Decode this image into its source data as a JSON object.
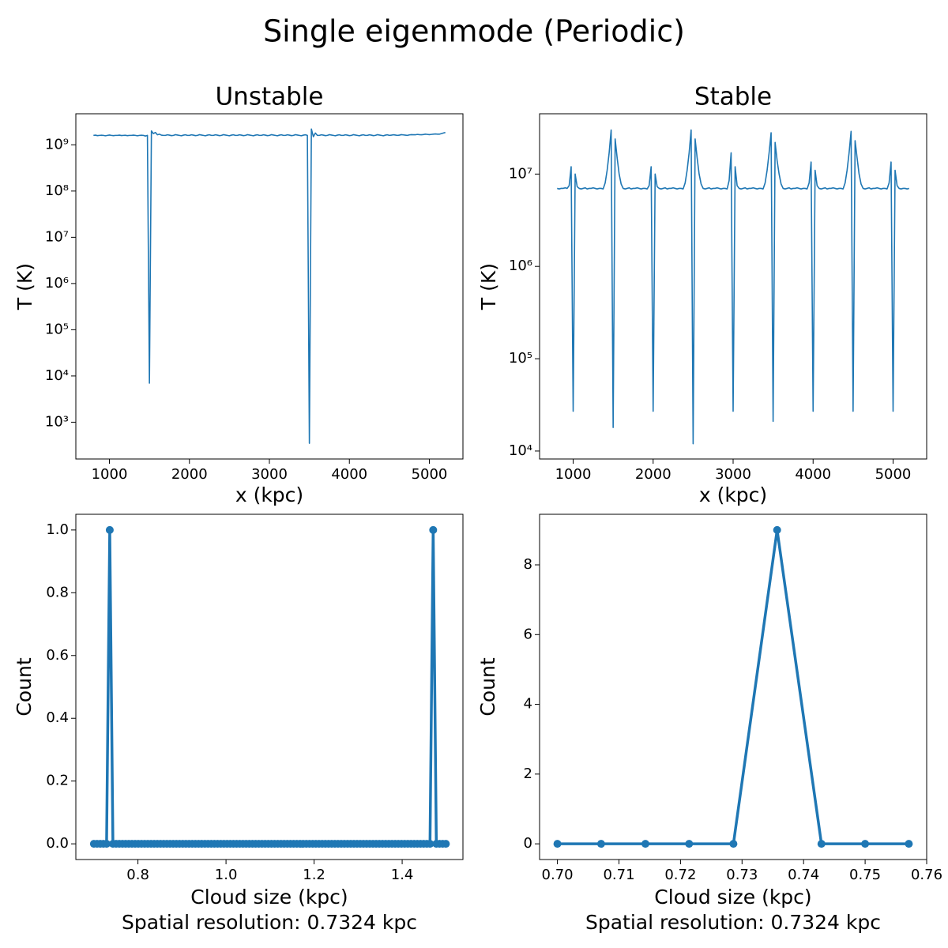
{
  "title": "Single eigenmode (Periodic)",
  "chart_data": [
    {
      "type": "line",
      "title": "Unstable",
      "xlabel": "x (kpc)",
      "ylabel": "T (K)",
      "yscale": "log",
      "color": "#1f77b4",
      "marker": false,
      "xlim": [
        580,
        5420
      ],
      "xticks": [
        1000,
        2000,
        3000,
        4000,
        5000
      ],
      "ylim": [
        160,
        4700000000.0
      ],
      "yticks": [
        {
          "value": 1000,
          "label": "10³"
        },
        {
          "value": 10000,
          "label": "10⁴"
        },
        {
          "value": 100000,
          "label": "10⁵"
        },
        {
          "value": 1000000,
          "label": "10⁶"
        },
        {
          "value": 10000000,
          "label": "10⁷"
        },
        {
          "value": 100000000,
          "label": "10⁸"
        },
        {
          "value": 1000000000,
          "label": "10⁹"
        }
      ],
      "x": [
        800,
        825,
        850,
        875,
        900,
        925,
        950,
        975,
        1000,
        1025,
        1050,
        1075,
        1100,
        1125,
        1150,
        1175,
        1200,
        1225,
        1250,
        1275,
        1300,
        1325,
        1350,
        1375,
        1400,
        1425,
        1450,
        1475,
        1500,
        1525,
        1550,
        1575,
        1600,
        1625,
        1650,
        1675,
        1700,
        1725,
        1750,
        1775,
        1800,
        1825,
        1850,
        1875,
        1900,
        1925,
        1950,
        1975,
        2000,
        2025,
        2050,
        2075,
        2100,
        2125,
        2150,
        2175,
        2200,
        2225,
        2250,
        2275,
        2300,
        2325,
        2350,
        2375,
        2400,
        2425,
        2450,
        2475,
        2500,
        2525,
        2550,
        2575,
        2600,
        2625,
        2650,
        2675,
        2700,
        2725,
        2750,
        2775,
        2800,
        2825,
        2850,
        2875,
        2900,
        2925,
        2950,
        2975,
        3000,
        3025,
        3050,
        3075,
        3100,
        3125,
        3150,
        3175,
        3200,
        3225,
        3250,
        3275,
        3300,
        3325,
        3350,
        3375,
        3400,
        3425,
        3450,
        3475,
        3500,
        3525,
        3550,
        3575,
        3600,
        3625,
        3650,
        3675,
        3700,
        3725,
        3750,
        3775,
        3800,
        3825,
        3850,
        3875,
        3900,
        3925,
        3950,
        3975,
        4000,
        4025,
        4050,
        4075,
        4100,
        4125,
        4150,
        4175,
        4200,
        4225,
        4250,
        4275,
        4300,
        4325,
        4350,
        4375,
        4400,
        4425,
        4450,
        4475,
        4500,
        4525,
        4550,
        4575,
        4600,
        4625,
        4650,
        4675,
        4700,
        4725,
        4750,
        4775,
        4800,
        4825,
        4850,
        4875,
        4900,
        4925,
        4950,
        4975,
        5000,
        5025,
        5050,
        5075,
        5100,
        5125,
        5150,
        5175,
        5200
      ],
      "values": [
        1600000000.0,
        1620000000.0,
        1580000000.0,
        1600000000.0,
        1610000000.0,
        1600000000.0,
        1570000000.0,
        1600000000.0,
        1630000000.0,
        1600000000.0,
        1580000000.0,
        1600000000.0,
        1600000000.0,
        1620000000.0,
        1590000000.0,
        1600000000.0,
        1610000000.0,
        1580000000.0,
        1600000000.0,
        1600000000.0,
        1620000000.0,
        1600000000.0,
        1570000000.0,
        1600000000.0,
        1610000000.0,
        1600000000.0,
        1550000000.0,
        1600000000.0,
        7000,
        2000000000.0,
        1750000000.0,
        1850000000.0,
        1650000000.0,
        1700000000.0,
        1620000000.0,
        1600000000.0,
        1600000000.0,
        1650000000.0,
        1620000000.0,
        1580000000.0,
        1600000000.0,
        1660000000.0,
        1630000000.0,
        1600000000.0,
        1570000000.0,
        1620000000.0,
        1650000000.0,
        1600000000.0,
        1600000000.0,
        1650000000.0,
        1620000000.0,
        1580000000.0,
        1600000000.0,
        1660000000.0,
        1630000000.0,
        1600000000.0,
        1570000000.0,
        1620000000.0,
        1650000000.0,
        1600000000.0,
        1600000000.0,
        1650000000.0,
        1620000000.0,
        1580000000.0,
        1600000000.0,
        1660000000.0,
        1630000000.0,
        1600000000.0,
        1570000000.0,
        1620000000.0,
        1650000000.0,
        1600000000.0,
        1600000000.0,
        1650000000.0,
        1620000000.0,
        1580000000.0,
        1600000000.0,
        1660000000.0,
        1630000000.0,
        1600000000.0,
        1570000000.0,
        1620000000.0,
        1650000000.0,
        1600000000.0,
        1600000000.0,
        1650000000.0,
        1620000000.0,
        1580000000.0,
        1600000000.0,
        1660000000.0,
        1630000000.0,
        1600000000.0,
        1570000000.0,
        1620000000.0,
        1650000000.0,
        1600000000.0,
        1600000000.0,
        1650000000.0,
        1620000000.0,
        1580000000.0,
        1600000000.0,
        1660000000.0,
        1630000000.0,
        1600000000.0,
        1570000000.0,
        1620000000.0,
        1650000000.0,
        1600000000.0,
        350,
        2200000000.0,
        1500000000.0,
        1800000000.0,
        1600000000.0,
        1600000000.0,
        1650000000.0,
        1620000000.0,
        1580000000.0,
        1600000000.0,
        1660000000.0,
        1630000000.0,
        1600000000.0,
        1570000000.0,
        1620000000.0,
        1650000000.0,
        1600000000.0,
        1600000000.0,
        1650000000.0,
        1620000000.0,
        1580000000.0,
        1600000000.0,
        1660000000.0,
        1630000000.0,
        1600000000.0,
        1570000000.0,
        1620000000.0,
        1650000000.0,
        1600000000.0,
        1600000000.0,
        1650000000.0,
        1620000000.0,
        1580000000.0,
        1600000000.0,
        1660000000.0,
        1630000000.0,
        1600000000.0,
        1570000000.0,
        1620000000.0,
        1650000000.0,
        1600000000.0,
        1620000000.0,
        1650000000.0,
        1630000000.0,
        1600000000.0,
        1620000000.0,
        1660000000.0,
        1640000000.0,
        1620000000.0,
        1600000000.0,
        1640000000.0,
        1660000000.0,
        1650000000.0,
        1650000000.0,
        1680000000.0,
        1660000000.0,
        1650000000.0,
        1670000000.0,
        1700000000.0,
        1680000000.0,
        1660000000.0,
        1680000000.0,
        1700000000.0,
        1720000000.0,
        1700000000.0,
        1700000000.0,
        1750000000.0,
        1800000000.0,
        1850000000.0
      ]
    },
    {
      "type": "line",
      "title": "Stable",
      "xlabel": "x (kpc)",
      "ylabel": "T (K)",
      "yscale": "log",
      "color": "#1f77b4",
      "marker": false,
      "xlim": [
        580,
        5420
      ],
      "xticks": [
        1000,
        2000,
        3000,
        4000,
        5000
      ],
      "ylim": [
        8200,
        45000000.0
      ],
      "yticks": [
        {
          "value": 10000,
          "label": "10⁴"
        },
        {
          "value": 100000,
          "label": "10⁵"
        },
        {
          "value": 1000000,
          "label": "10⁶"
        },
        {
          "value": 10000000,
          "label": "10⁷"
        }
      ],
      "x": [
        800,
        825,
        850,
        875,
        900,
        925,
        950,
        975,
        1000,
        1025,
        1050,
        1075,
        1100,
        1125,
        1150,
        1175,
        1200,
        1225,
        1250,
        1275,
        1300,
        1325,
        1350,
        1375,
        1400,
        1425,
        1450,
        1475,
        1500,
        1525,
        1550,
        1575,
        1600,
        1625,
        1650,
        1675,
        1700,
        1725,
        1750,
        1775,
        1800,
        1825,
        1850,
        1875,
        1900,
        1925,
        1950,
        1975,
        2000,
        2025,
        2050,
        2075,
        2100,
        2125,
        2150,
        2175,
        2200,
        2225,
        2250,
        2275,
        2300,
        2325,
        2350,
        2375,
        2400,
        2425,
        2450,
        2475,
        2500,
        2525,
        2550,
        2575,
        2600,
        2625,
        2650,
        2675,
        2700,
        2725,
        2750,
        2775,
        2800,
        2825,
        2850,
        2875,
        2900,
        2925,
        2950,
        2975,
        3000,
        3025,
        3050,
        3075,
        3100,
        3125,
        3150,
        3175,
        3200,
        3225,
        3250,
        3275,
        3300,
        3325,
        3350,
        3375,
        3400,
        3425,
        3450,
        3475,
        3500,
        3525,
        3550,
        3575,
        3600,
        3625,
        3650,
        3675,
        3700,
        3725,
        3750,
        3775,
        3800,
        3825,
        3850,
        3875,
        3900,
        3925,
        3950,
        3975,
        4000,
        4025,
        4050,
        4075,
        4100,
        4125,
        4150,
        4175,
        4200,
        4225,
        4250,
        4275,
        4300,
        4325,
        4350,
        4375,
        4400,
        4425,
        4450,
        4475,
        4500,
        4525,
        4550,
        4575,
        4600,
        4625,
        4650,
        4675,
        4700,
        4725,
        4750,
        4775,
        4800,
        4825,
        4850,
        4875,
        4900,
        4925,
        4950,
        4975,
        5000,
        5025,
        5050,
        5075,
        5100,
        5125,
        5150,
        5175,
        5200
      ],
      "values": [
        7000000.0,
        6900000.0,
        7000000.0,
        7000000.0,
        7100000.0,
        7000000.0,
        7500000.0,
        12000000.0,
        27000.0,
        10000000.0,
        7300000.0,
        7000000.0,
        6900000.0,
        7000000.0,
        7100000.0,
        6900000.0,
        7000000.0,
        7000000.0,
        7100000.0,
        7000000.0,
        6900000.0,
        7000000.0,
        7000000.0,
        6900000.0,
        8000000.0,
        11000000.0,
        17000000.0,
        30000000.0,
        18000.0,
        24000000.0,
        15000000.0,
        10000000.0,
        7800000.0,
        7000000.0,
        6900000.0,
        7000000.0,
        7100000.0,
        6900000.0,
        7000000.0,
        7000000.0,
        7100000.0,
        7000000.0,
        6900000.0,
        7000000.0,
        7000000.0,
        6900000.0,
        7500000.0,
        12000000.0,
        27000.0,
        10000000.0,
        7300000.0,
        7000000.0,
        6900000.0,
        7000000.0,
        7100000.0,
        6900000.0,
        7000000.0,
        7000000.0,
        7100000.0,
        7000000.0,
        6900000.0,
        7000000.0,
        7000000.0,
        6900000.0,
        8000000.0,
        11000000.0,
        17000000.0,
        30000000.0,
        12000.0,
        24000000.0,
        15000000.0,
        10000000.0,
        7800000.0,
        7000000.0,
        6900000.0,
        7000000.0,
        7100000.0,
        6900000.0,
        7000000.0,
        7000000.0,
        7100000.0,
        7000000.0,
        6900000.0,
        7000000.0,
        7000000.0,
        6900000.0,
        8500000.0,
        17000000.0,
        27000.0,
        12000000.0,
        7500000.0,
        7000000.0,
        6900000.0,
        7000000.0,
        7100000.0,
        6900000.0,
        7000000.0,
        7000000.0,
        7100000.0,
        7000000.0,
        6900000.0,
        7000000.0,
        7000000.0,
        6900000.0,
        8000000.0,
        11000000.0,
        17000000.0,
        28000000.0,
        21000.0,
        22000000.0,
        14000000.0,
        10000000.0,
        7800000.0,
        7000000.0,
        6900000.0,
        7000000.0,
        7100000.0,
        6900000.0,
        7000000.0,
        7000000.0,
        7100000.0,
        7000000.0,
        6900000.0,
        7000000.0,
        7000000.0,
        6900000.0,
        8000000.0,
        13500000.0,
        27000.0,
        11000000.0,
        7500000.0,
        7000000.0,
        6900000.0,
        7000000.0,
        7100000.0,
        6900000.0,
        7000000.0,
        7000000.0,
        7100000.0,
        7000000.0,
        6900000.0,
        7000000.0,
        7000000.0,
        6900000.0,
        8000000.0,
        11000000.0,
        17000000.0,
        29000000.0,
        27000.0,
        23000000.0,
        15000000.0,
        10000000.0,
        7800000.0,
        7000000.0,
        6900000.0,
        7000000.0,
        7100000.0,
        6900000.0,
        7000000.0,
        7000000.0,
        7100000.0,
        7000000.0,
        6900000.0,
        7000000.0,
        7000000.0,
        6900000.0,
        8000000.0,
        13500000.0,
        27000.0,
        11000000.0,
        7500000.0,
        7000000.0,
        6900000.0,
        7000000.0,
        7000000.0,
        6900000.0,
        7000000.0
      ]
    },
    {
      "type": "line",
      "xlabel": [
        "Cloud size (kpc)",
        "Spatial resolution: 0.7324 kpc"
      ],
      "ylabel": "Count",
      "yscale": "linear",
      "color": "#1f77b4",
      "marker": true,
      "xlim": [
        0.659,
        1.538
      ],
      "xticks": [
        0.8,
        {
          "value": 1.0,
          "label": "1.0"
        },
        1.2,
        1.4
      ],
      "ylim": [
        -0.05,
        1.05
      ],
      "yticks": [
        {
          "value": 0,
          "label": "0.0"
        },
        0.2,
        0.4,
        0.6,
        0.8,
        {
          "value": 1.0,
          "label": "1.0"
        }
      ],
      "x": [
        0.7,
        0.7072,
        0.7144,
        0.7216,
        0.7288,
        0.736,
        0.7432,
        0.7504,
        0.7576,
        0.7648,
        0.772,
        0.7792,
        0.7864,
        0.7936,
        0.8008,
        0.808,
        0.8152,
        0.8224,
        0.8296,
        0.8368,
        0.844,
        0.8512,
        0.8584,
        0.8656,
        0.8728,
        0.88,
        0.8872,
        0.8944,
        0.9016,
        0.9088,
        0.916,
        0.9232,
        0.9304,
        0.9376,
        0.9448,
        0.952,
        0.9592,
        0.9664,
        0.9736,
        0.9808,
        0.988,
        0.9952,
        1.0024,
        1.0096,
        1.0168,
        1.024,
        1.0312,
        1.0384,
        1.0456,
        1.0528,
        1.06,
        1.0672,
        1.0744,
        1.0816,
        1.0888,
        1.096,
        1.1032,
        1.1104,
        1.1176,
        1.1248,
        1.132,
        1.1392,
        1.1464,
        1.1536,
        1.1608,
        1.168,
        1.1752,
        1.1824,
        1.1896,
        1.1968,
        1.204,
        1.2112,
        1.2184,
        1.2256,
        1.2328,
        1.24,
        1.2472,
        1.2544,
        1.2616,
        1.2688,
        1.276,
        1.2832,
        1.2904,
        1.2976,
        1.3048,
        1.312,
        1.3192,
        1.3264,
        1.3336,
        1.3408,
        1.348,
        1.3552,
        1.3624,
        1.3696,
        1.3768,
        1.384,
        1.3912,
        1.3984,
        1.4056,
        1.4128,
        1.42,
        1.4272,
        1.4344,
        1.4416,
        1.4488,
        1.456,
        1.4632,
        1.4704,
        1.4776,
        1.4848,
        1.492,
        1.4992
      ],
      "values": [
        0,
        0,
        0,
        0,
        0,
        1,
        0,
        0,
        0,
        0,
        0,
        0,
        0,
        0,
        0,
        0,
        0,
        0,
        0,
        0,
        0,
        0,
        0,
        0,
        0,
        0,
        0,
        0,
        0,
        0,
        0,
        0,
        0,
        0,
        0,
        0,
        0,
        0,
        0,
        0,
        0,
        0,
        0,
        0,
        0,
        0,
        0,
        0,
        0,
        0,
        0,
        0,
        0,
        0,
        0,
        0,
        0,
        0,
        0,
        0,
        0,
        0,
        0,
        0,
        0,
        0,
        0,
        0,
        0,
        0,
        0,
        0,
        0,
        0,
        0,
        0,
        0,
        0,
        0,
        0,
        0,
        0,
        0,
        0,
        0,
        0,
        0,
        0,
        0,
        0,
        0,
        0,
        0,
        0,
        0,
        0,
        0,
        0,
        0,
        0,
        0,
        0,
        0,
        0,
        0,
        0,
        0,
        1,
        0,
        0,
        0,
        0
      ]
    },
    {
      "type": "line",
      "xlabel": [
        "Cloud size (kpc)",
        "Spatial resolution: 0.7324 kpc"
      ],
      "ylabel": "Count",
      "yscale": "linear",
      "color": "#1f77b4",
      "marker": true,
      "xlim": [
        0.6971,
        0.76
      ],
      "xticks": [
        {
          "value": 0.7,
          "label": "0.70"
        },
        0.71,
        0.72,
        0.73,
        0.74,
        0.75,
        0.76
      ],
      "ylim": [
        -0.45,
        9.45
      ],
      "yticks": [
        0,
        2,
        4,
        6,
        8
      ],
      "x": [
        0.7,
        0.7071,
        0.7143,
        0.7214,
        0.7286,
        0.7357,
        0.7429,
        0.75,
        0.7571
      ],
      "values": [
        0,
        0,
        0,
        0,
        0,
        9,
        0,
        0,
        0
      ]
    }
  ]
}
